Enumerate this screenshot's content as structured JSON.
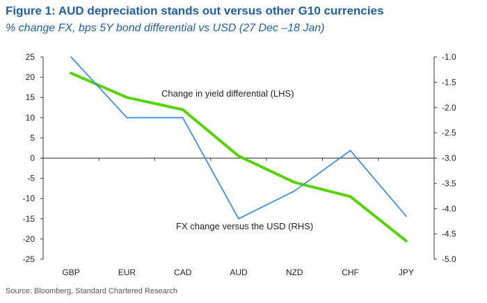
{
  "title": "Figure 1: AUD depreciation stands out versus other G10 currencies",
  "subtitle": "% change FX, bps 5Y bond differential vs USD (27 Dec –18 Jan)",
  "source": "Source: Bloomberg, Standard Chartered Research",
  "chart_data": {
    "type": "line",
    "categories": [
      "GBP",
      "EUR",
      "CAD",
      "AUD",
      "NZD",
      "CHF",
      "JPY"
    ],
    "series": [
      {
        "name": "Change in yield differential (LHS)",
        "axis": "left",
        "color": "#55d400",
        "values": [
          21,
          15,
          12,
          0.5,
          -6,
          -9.5,
          -20.5
        ]
      },
      {
        "name": "FX change versus the USD (RHS)",
        "axis": "right",
        "color": "#3d8ee6",
        "values": [
          -1.0,
          -2.2,
          -2.2,
          -4.2,
          -3.65,
          -2.85,
          -4.15
        ]
      }
    ],
    "y_left": {
      "min": -25,
      "max": 25,
      "step": 5,
      "ticks": [
        "25",
        "20",
        "15",
        "10",
        "5",
        "0",
        "-5",
        "-10",
        "-15",
        "-20",
        "-25"
      ]
    },
    "y_right": {
      "min": -5.0,
      "max": -1.0,
      "step": 0.5,
      "ticks": [
        "-1.0",
        "-1.5",
        "-2.0",
        "-2.5",
        "-3.0",
        "-3.5",
        "-4.0",
        "-4.5",
        "-5.0"
      ]
    },
    "annotations": [
      "Change in yield differential (LHS)",
      "FX change versus the USD (RHS)"
    ]
  }
}
